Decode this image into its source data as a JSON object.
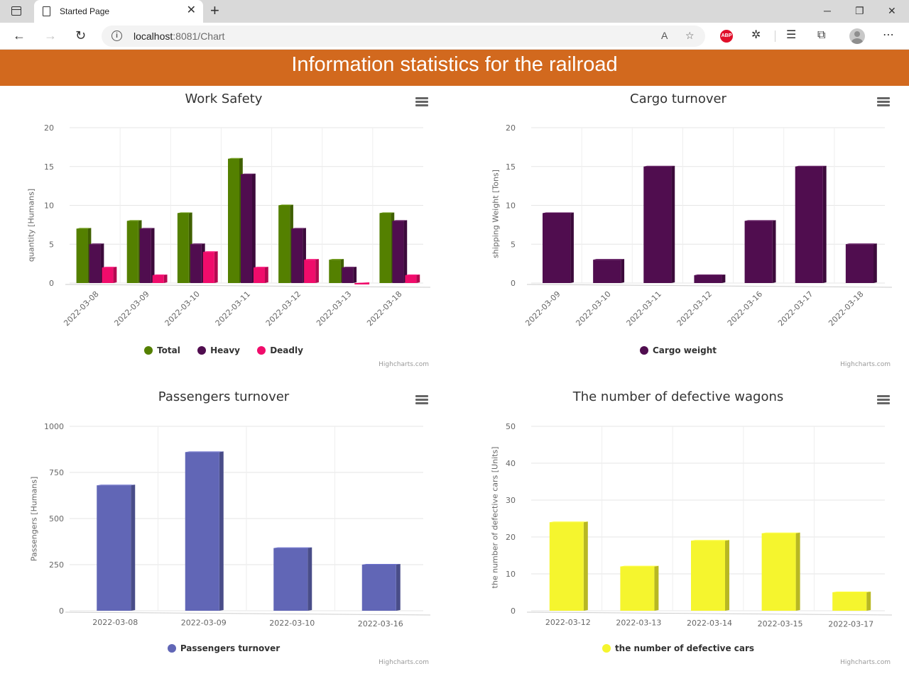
{
  "browser": {
    "tab_title": "Started Page",
    "url_host": "localhost",
    "url_rest": ":8081/Chart"
  },
  "page": {
    "banner_title": "Information statistics for the railroad",
    "credits": "Highcharts.com"
  },
  "colors": {
    "banner": "#d2691e",
    "total": "#548000",
    "heavy": "#500d4f",
    "deadly": "#f00c6b",
    "cargo": "#500d4f",
    "passengers": "#6166b6",
    "defective": "#f5f52e"
  },
  "chart_data": [
    {
      "type": "bar",
      "title": "Work Safety",
      "ylabel": "quantity [Humans]",
      "xlabel": "",
      "ylim": [
        0,
        20
      ],
      "yticks": [
        "0",
        "5",
        "10",
        "15",
        "20"
      ],
      "x_label_rotation": "rotated",
      "categories": [
        "2022-03-08",
        "2022-03-09",
        "2022-03-10",
        "2022-03-11",
        "2022-03-12",
        "2022-03-13",
        "2022-03-18"
      ],
      "series": [
        {
          "name": "Total",
          "color": "#548000",
          "values": [
            7,
            8,
            9,
            16,
            10,
            3,
            9
          ]
        },
        {
          "name": "Heavy",
          "color": "#500d4f",
          "values": [
            5,
            7,
            5,
            14,
            7,
            2,
            8
          ]
        },
        {
          "name": "Deadly",
          "color": "#f00c6b",
          "values": [
            2,
            1,
            4,
            2,
            3,
            0,
            1
          ]
        }
      ],
      "grid": true,
      "legend": "bottom"
    },
    {
      "type": "bar",
      "title": "Cargo turnover",
      "ylabel": "shipping Weight [Tons]",
      "xlabel": "",
      "ylim": [
        0,
        20
      ],
      "yticks": [
        "0",
        "5",
        "10",
        "15",
        "20"
      ],
      "x_label_rotation": "rotated",
      "categories": [
        "2022-03-09",
        "2022-03-10",
        "2022-03-11",
        "2022-03-12",
        "2022-03-16",
        "2022-03-17",
        "2022-03-18"
      ],
      "series": [
        {
          "name": "Cargo weight",
          "color": "#500d4f",
          "values": [
            9,
            3,
            15,
            1,
            8,
            15,
            5
          ]
        }
      ],
      "grid": true,
      "legend": "bottom"
    },
    {
      "type": "bar",
      "title": "Passengers turnover",
      "ylabel": "Passengers [Humans]",
      "xlabel": "",
      "ylim": [
        0,
        1000
      ],
      "yticks": [
        "0",
        "250",
        "500",
        "750",
        "1000"
      ],
      "x_label_rotation": "horizontal",
      "categories": [
        "2022-03-08",
        "2022-03-09",
        "2022-03-10",
        "2022-03-16"
      ],
      "series": [
        {
          "name": "Passengers turnover",
          "color": "#6166b6",
          "values": [
            680,
            860,
            340,
            250
          ]
        }
      ],
      "grid": true,
      "legend": "bottom"
    },
    {
      "type": "bar",
      "title": "The number of defective wagons",
      "ylabel": "the number of defective cars [Units]",
      "xlabel": "",
      "ylim": [
        0,
        50
      ],
      "yticks": [
        "0",
        "10",
        "20",
        "30",
        "40",
        "50"
      ],
      "x_label_rotation": "horizontal",
      "categories": [
        "2022-03-12",
        "2022-03-13",
        "2022-03-14",
        "2022-03-15",
        "2022-03-17"
      ],
      "series": [
        {
          "name": "the number of defective cars",
          "color": "#f5f52e",
          "values": [
            24,
            12,
            19,
            21,
            5
          ]
        }
      ],
      "grid": true,
      "legend": "bottom"
    }
  ]
}
